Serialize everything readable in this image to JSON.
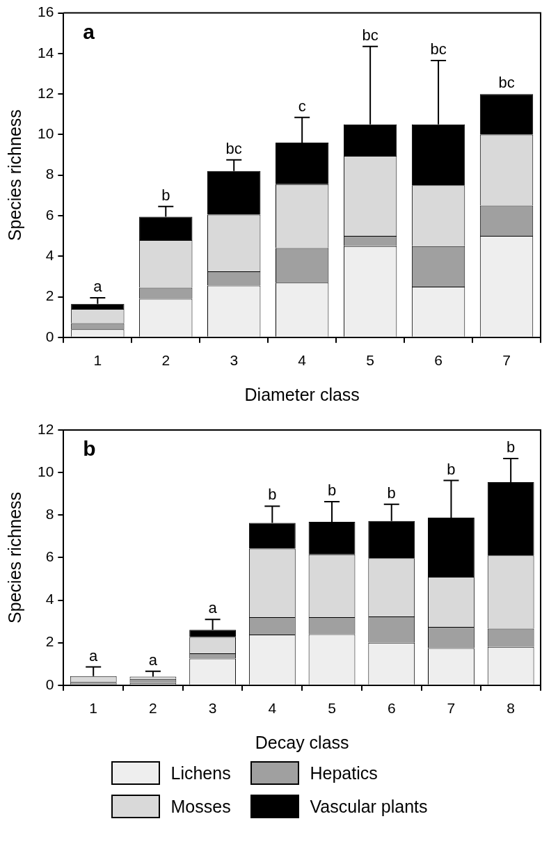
{
  "chart_data": [
    {
      "type": "bar",
      "title": "a",
      "xlabel": "Diameter class",
      "ylabel": "Species richness",
      "categories": [
        "1",
        "2",
        "3",
        "4",
        "5",
        "6",
        "7"
      ],
      "stacked": true,
      "ylim": [
        0,
        16
      ],
      "yticks": [
        0,
        2,
        4,
        6,
        8,
        10,
        12,
        14,
        16
      ],
      "grid": false,
      "legend": false,
      "series": [
        {
          "color": "#eeeeee",
          "values": [
            0.4,
            1.9,
            2.55,
            2.7,
            4.5,
            2.5,
            5.0
          ]
        },
        {
          "color": "#a0a0a0",
          "values": [
            0.3,
            0.55,
            0.7,
            1.7,
            0.5,
            2.0,
            1.5
          ]
        },
        {
          "color": "#d9d9d9",
          "values": [
            0.7,
            2.35,
            2.8,
            3.15,
            3.95,
            3.0,
            3.5
          ]
        },
        {
          "color": "#000000",
          "values": [
            0.25,
            1.15,
            2.15,
            2.05,
            1.55,
            3.0,
            2.0
          ],
          "errors": [
            [
              1.65,
              1.95
            ],
            [
              5.95,
              6.45
            ],
            [
              8.2,
              8.75
            ],
            [
              9.6,
              10.85
            ],
            [
              10.5,
              14.35
            ],
            [
              10.5,
              13.65
            ],
            null
          ]
        }
      ],
      "annotations": [
        {
          "text": "a",
          "x": "1",
          "y": 1.95
        },
        {
          "text": "b",
          "x": "2",
          "y": 6.45
        },
        {
          "text": "bc",
          "x": "3",
          "y": 8.75
        },
        {
          "text": "c",
          "x": "4",
          "y": 10.85
        },
        {
          "text": "bc",
          "x": "5",
          "y": 14.35
        },
        {
          "text": "bc",
          "x": "6",
          "y": 13.65
        },
        {
          "text": "bc",
          "x": "7",
          "y": 12.0
        }
      ]
    },
    {
      "type": "bar",
      "title": "b",
      "xlabel": "Decay class",
      "ylabel": "Species richness",
      "categories": [
        "1",
        "2",
        "3",
        "4",
        "5",
        "6",
        "7",
        "8"
      ],
      "stacked": true,
      "ylim": [
        0,
        12
      ],
      "yticks": [
        0,
        2,
        4,
        6,
        8,
        10,
        12
      ],
      "grid": false,
      "legend": "bottom",
      "series": [
        {
          "name": "Lichens",
          "color": "#eeeeee",
          "values": [
            0,
            0.1,
            1.25,
            2.38,
            2.4,
            2.0,
            1.74,
            1.8
          ]
        },
        {
          "name": "Hepatics",
          "color": "#a0a0a0",
          "values": [
            0.15,
            0.2,
            0.25,
            0.82,
            0.8,
            1.23,
            1.0,
            0.86
          ]
        },
        {
          "name": "Mosses",
          "color": "#d9d9d9",
          "values": [
            0.28,
            0.1,
            0.77,
            3.22,
            2.95,
            2.74,
            2.36,
            3.44
          ]
        },
        {
          "name": "Vascular plants",
          "color": "#000000",
          "values": [
            0,
            0,
            0.33,
            1.21,
            1.53,
            1.75,
            2.78,
            3.45
          ],
          "errors": [
            [
              0.43,
              0.86
            ],
            [
              0.4,
              0.66
            ],
            [
              2.6,
              3.09
            ],
            [
              7.63,
              8.42
            ],
            [
              7.68,
              8.63
            ],
            [
              7.72,
              8.51
            ],
            [
              7.88,
              9.63
            ],
            [
              9.55,
              10.66
            ]
          ]
        }
      ],
      "annotations": [
        {
          "text": "a",
          "x": "1",
          "y": 0.86
        },
        {
          "text": "a",
          "x": "2",
          "y": 0.66
        },
        {
          "text": "a",
          "x": "3",
          "y": 3.09
        },
        {
          "text": "b",
          "x": "4",
          "y": 8.42
        },
        {
          "text": "b",
          "x": "5",
          "y": 8.63
        },
        {
          "text": "b",
          "x": "6",
          "y": 8.51
        },
        {
          "text": "b",
          "x": "7",
          "y": 9.63
        },
        {
          "text": "b",
          "x": "8",
          "y": 10.66
        }
      ]
    }
  ]
}
